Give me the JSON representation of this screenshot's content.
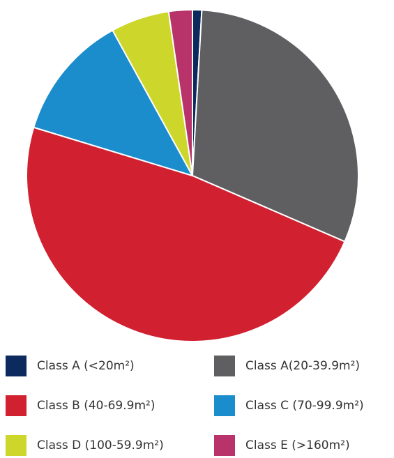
{
  "chart_data": {
    "type": "pie",
    "categories": [
      "Class A (<20m²)",
      "Class A(20-39.9m²)",
      "Class B (40-69.9m²)",
      "Class C (70-99.9m²)",
      "Class D (100-59.9m²)",
      "Class E (>160m²)"
    ],
    "values": [
      0.9,
      30.6,
      48.2,
      12.3,
      5.7,
      2.3
    ],
    "colors": [
      "#0d2a5e",
      "#5f5f62",
      "#d12030",
      "#1b8ccc",
      "#cdd62b",
      "#b8336a"
    ]
  }
}
